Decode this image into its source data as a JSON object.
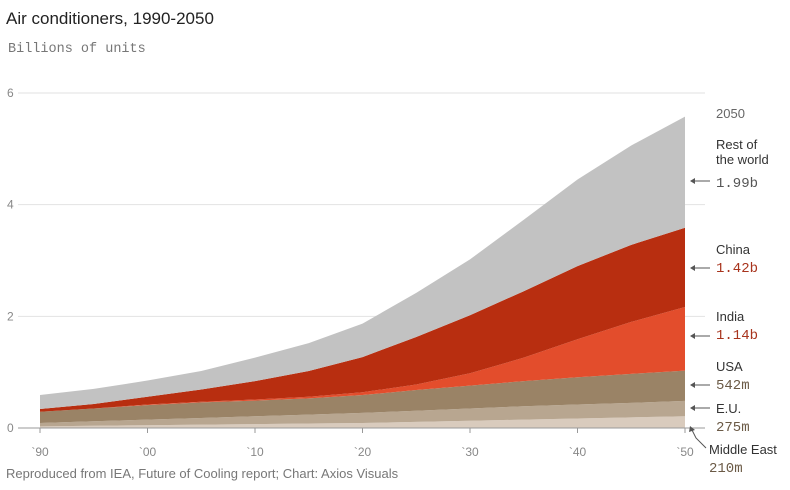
{
  "chart_data": {
    "type": "area",
    "stacked": true,
    "title": "Air conditioners, 1990-2050",
    "subtitle": "Billions of units",
    "source": "Reproduced from IEA, Future of Cooling report; Chart: Axios Visuals",
    "x": [
      1990,
      1995,
      2000,
      2005,
      2010,
      2015,
      2020,
      2025,
      2030,
      2035,
      2040,
      2045,
      2050
    ],
    "xlim": [
      1990,
      2050
    ],
    "x_tick_values": [
      1990,
      2000,
      2010,
      2020,
      2030,
      2040,
      2050
    ],
    "x_tick_labels": [
      "`90",
      "`00",
      "`10",
      "`20",
      "`30",
      "`40",
      "`50"
    ],
    "ylim": [
      0,
      6
    ],
    "y_tick_values": [
      0,
      2,
      4,
      6
    ],
    "y_tick_labels": [
      "0",
      "2",
      "4",
      "6"
    ],
    "grid": true,
    "legend_placement": "right",
    "legend_header": "2050",
    "series": [
      {
        "name": "Middle East",
        "color": "#d9cbbd",
        "end_label": "210m",
        "label_color": "#6b5a46",
        "values": [
          0.03,
          0.04,
          0.05,
          0.06,
          0.07,
          0.08,
          0.09,
          0.11,
          0.13,
          0.15,
          0.17,
          0.19,
          0.21
        ]
      },
      {
        "name": "E.U.",
        "color": "#b8a690",
        "end_label": "275m",
        "label_color": "#6b5a46",
        "values": [
          0.06,
          0.08,
          0.1,
          0.12,
          0.14,
          0.16,
          0.18,
          0.2,
          0.22,
          0.24,
          0.25,
          0.26,
          0.275
        ]
      },
      {
        "name": "USA",
        "color": "#9a8366",
        "end_label": "542m",
        "label_color": "#6b5a46",
        "values": [
          0.2,
          0.23,
          0.26,
          0.28,
          0.28,
          0.29,
          0.32,
          0.37,
          0.41,
          0.45,
          0.49,
          0.52,
          0.542
        ]
      },
      {
        "name": "India",
        "color": "#e34d2c",
        "end_label": "1.14b",
        "label_color": "#a8341d",
        "values": [
          0.0,
          0.0,
          0.01,
          0.01,
          0.02,
          0.03,
          0.05,
          0.1,
          0.22,
          0.42,
          0.68,
          0.93,
          1.14
        ]
      },
      {
        "name": "China",
        "color": "#b82e10",
        "end_label": "1.42b",
        "label_color": "#a8341d",
        "values": [
          0.05,
          0.08,
          0.14,
          0.22,
          0.33,
          0.46,
          0.63,
          0.85,
          1.04,
          1.19,
          1.31,
          1.38,
          1.42
        ]
      },
      {
        "name": "Rest of the world",
        "label_lines": [
          "Rest of",
          "the world"
        ],
        "color": "#c2c2c2",
        "end_label": "1.99b",
        "label_color": "#555555",
        "values": [
          0.25,
          0.27,
          0.29,
          0.33,
          0.42,
          0.5,
          0.6,
          0.79,
          1.0,
          1.28,
          1.55,
          1.78,
          1.99
        ]
      }
    ]
  }
}
